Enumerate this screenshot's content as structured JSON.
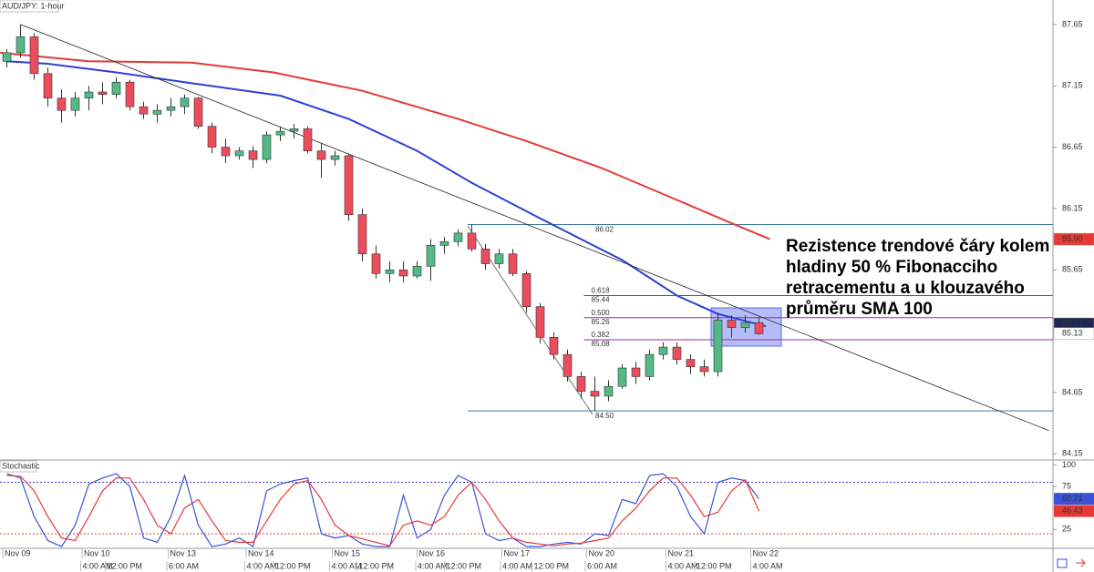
{
  "chart_data": [
    {
      "type": "candlestick",
      "title": "AUD/JPY: 1-hour",
      "xlim": [
        -0.5,
        76.5
      ],
      "ylim": [
        84.1,
        87.85
      ],
      "yticks": [
        84.15,
        84.65,
        85.65,
        86.15,
        86.65,
        87.15,
        87.65
      ],
      "up_color": "#53b987",
      "down_color": "#eb4d5c",
      "candles": [
        [
          87.35,
          87.45,
          87.3,
          87.42
        ],
        [
          87.42,
          87.65,
          87.38,
          87.55
        ],
        [
          87.55,
          87.58,
          87.2,
          87.25
        ],
        [
          87.25,
          87.3,
          86.98,
          87.05
        ],
        [
          87.05,
          87.12,
          86.85,
          86.95
        ],
        [
          86.95,
          87.1,
          86.9,
          87.05
        ],
        [
          87.05,
          87.15,
          86.95,
          87.1
        ],
        [
          87.1,
          87.18,
          87.0,
          87.08
        ],
        [
          87.08,
          87.22,
          87.05,
          87.18
        ],
        [
          87.18,
          87.2,
          86.95,
          86.98
        ],
        [
          86.98,
          87.02,
          86.88,
          86.92
        ],
        [
          86.92,
          87.0,
          86.85,
          86.95
        ],
        [
          86.95,
          87.05,
          86.9,
          86.98
        ],
        [
          86.98,
          87.08,
          86.92,
          87.05
        ],
        [
          87.05,
          87.06,
          86.8,
          86.82
        ],
        [
          86.82,
          86.85,
          86.6,
          86.65
        ],
        [
          86.65,
          86.72,
          86.52,
          86.58
        ],
        [
          86.58,
          86.65,
          86.55,
          86.62
        ],
        [
          86.62,
          86.66,
          86.48,
          86.55
        ],
        [
          86.55,
          86.78,
          86.52,
          86.75
        ],
        [
          86.75,
          86.82,
          86.7,
          86.78
        ],
        [
          86.78,
          86.84,
          86.72,
          86.8
        ],
        [
          86.8,
          86.82,
          86.6,
          86.62
        ],
        [
          86.62,
          86.68,
          86.4,
          86.55
        ],
        [
          86.55,
          86.62,
          86.5,
          86.58
        ],
        [
          86.58,
          86.6,
          86.05,
          86.1
        ],
        [
          86.1,
          86.15,
          85.72,
          85.78
        ],
        [
          85.78,
          85.85,
          85.58,
          85.62
        ],
        [
          85.62,
          85.72,
          85.55,
          85.65
        ],
        [
          85.65,
          85.72,
          85.55,
          85.6
        ],
        [
          85.6,
          85.72,
          85.58,
          85.68
        ],
        [
          85.68,
          85.9,
          85.56,
          85.85
        ],
        [
          85.85,
          85.92,
          85.78,
          85.88
        ],
        [
          85.88,
          85.98,
          85.84,
          85.95
        ],
        [
          85.95,
          86.02,
          85.8,
          85.82
        ],
        [
          85.82,
          85.86,
          85.65,
          85.7
        ],
        [
          85.7,
          85.82,
          85.66,
          85.78
        ],
        [
          85.78,
          85.82,
          85.6,
          85.62
        ],
        [
          85.62,
          85.64,
          85.3,
          85.35
        ],
        [
          85.35,
          85.38,
          85.05,
          85.1
        ],
        [
          85.1,
          85.14,
          84.92,
          84.96
        ],
        [
          84.96,
          85.0,
          84.74,
          84.78
        ],
        [
          84.78,
          84.82,
          84.6,
          84.66
        ],
        [
          84.66,
          84.78,
          84.5,
          84.62
        ],
        [
          84.62,
          84.75,
          84.58,
          84.7
        ],
        [
          84.7,
          84.88,
          84.68,
          84.85
        ],
        [
          84.85,
          84.9,
          84.72,
          84.78
        ],
        [
          84.78,
          85.0,
          84.75,
          84.96
        ],
        [
          84.96,
          85.06,
          84.92,
          85.02
        ],
        [
          85.02,
          85.06,
          84.88,
          84.92
        ],
        [
          84.92,
          84.96,
          84.8,
          84.86
        ],
        [
          84.86,
          84.92,
          84.78,
          84.82
        ],
        [
          84.82,
          85.3,
          84.78,
          85.24
        ],
        [
          85.24,
          85.28,
          85.1,
          85.18
        ],
        [
          85.18,
          85.28,
          85.14,
          85.22
        ],
        [
          85.22,
          85.26,
          85.12,
          85.13
        ]
      ],
      "series": [
        {
          "color": "#2f3fd6",
          "x": [
            0,
            3,
            8,
            13,
            20,
            25,
            30,
            34,
            39,
            45,
            49,
            52,
            55.5
          ],
          "values": [
            87.35,
            87.33,
            87.26,
            87.18,
            87.07,
            86.88,
            86.62,
            86.36,
            86.07,
            85.73,
            85.44,
            85.29,
            85.19
          ]
        },
        {
          "color": "#e53935",
          "x": [
            -0.5,
            6,
            13.5,
            19.5,
            26,
            33,
            38,
            43.5,
            49,
            53,
            55.8
          ],
          "values": [
            87.42,
            87.35,
            87.34,
            87.26,
            87.11,
            86.88,
            86.7,
            86.48,
            86.22,
            86.03,
            85.9
          ]
        }
      ],
      "trendline": {
        "color": "#222222",
        "x": [
          1,
          76.2
        ],
        "values": [
          87.65,
          84.34
        ]
      },
      "fib_levels": [
        {
          "value": 86.02,
          "label": "86.02",
          "x_start": 33.7,
          "color": "#3c78a0"
        },
        {
          "value": 85.44,
          "label": "85.44",
          "ratio": "0.618",
          "x_start": 42.2,
          "color": "#9c27b0"
        },
        {
          "value": 85.26,
          "label": "85.26",
          "ratio": "0.500",
          "x_start": 42.2,
          "color": "#9c27b0"
        },
        {
          "value": 85.08,
          "label": "85.08",
          "ratio": "0.382",
          "x_start": 42.2,
          "color": "#9c27b0"
        },
        {
          "value": 84.5,
          "label": "84.50",
          "x_start": 33.7,
          "color": "#3c78a0"
        }
      ],
      "price_tags": [
        {
          "value": 85.9,
          "label": "85.90",
          "color": "#e53935",
          "text_color": "#ffffff"
        },
        {
          "value": 85.21,
          "label": "85.21",
          "color": "#1c2754",
          "text_color": "#ffffff"
        },
        {
          "value": 85.13,
          "label": "85.13",
          "color": "#ffffff",
          "text_color": "#000000"
        }
      ],
      "annotation": [
        "Rezistence trendové čáry kolem",
        "hladiny 50 % Fibonacciho",
        "retracementu a u klouzavého",
        "průměru SMA 100"
      ]
    },
    {
      "type": "line",
      "title": "Stochastic",
      "xlim": [
        -0.5,
        76.5
      ],
      "ylim": [
        3,
        106
      ],
      "yticks": [
        25,
        75,
        100
      ],
      "bands": [
        {
          "value": 80,
          "color": "#3a3ad0"
        },
        {
          "value": 20,
          "color": "#e53935"
        }
      ],
      "series": [
        {
          "color": "#3a52d8",
          "values": [
            90,
            85,
            40,
            12,
            5,
            30,
            78,
            85,
            90,
            75,
            15,
            10,
            40,
            88,
            30,
            5,
            8,
            15,
            5,
            70,
            78,
            82,
            85,
            20,
            15,
            18,
            8,
            5,
            5,
            65,
            15,
            25,
            65,
            88,
            80,
            20,
            12,
            15,
            5,
            5,
            8,
            10,
            8,
            20,
            18,
            60,
            55,
            88,
            90,
            75,
            40,
            20,
            80,
            85,
            82,
            60.71
          ]
        },
        {
          "color": "#e53935",
          "values": [
            88,
            87,
            70,
            40,
            15,
            12,
            40,
            70,
            85,
            85,
            60,
            30,
            20,
            50,
            60,
            35,
            12,
            10,
            10,
            35,
            60,
            78,
            82,
            60,
            30,
            18,
            14,
            10,
            6,
            30,
            35,
            30,
            40,
            65,
            80,
            60,
            35,
            15,
            10,
            8,
            6,
            8,
            9,
            12,
            15,
            35,
            50,
            70,
            85,
            85,
            65,
            40,
            45,
            70,
            83,
            46.43
          ]
        }
      ],
      "xticks": [
        {
          "value": -0.3,
          "label": "Nov 09"
        },
        {
          "value": 5.5,
          "label": "Nov 10"
        },
        {
          "value": 11.8,
          "label": "Nov 13"
        },
        {
          "value": 17.5,
          "label": "Nov 14"
        },
        {
          "value": 23.8,
          "label": "Nov 15"
        },
        {
          "value": 30,
          "label": "Nov 16"
        },
        {
          "value": 36.2,
          "label": "Nov 17"
        },
        {
          "value": 42.4,
          "label": "Nov 20"
        },
        {
          "value": 48.2,
          "label": "Nov 21"
        },
        {
          "value": 54.4,
          "label": "Nov 22"
        }
      ],
      "xticks_time": [
        {
          "value": 5.4,
          "label": "4:00 AM"
        },
        {
          "value": 7.2,
          "label": "12:00 PM"
        },
        {
          "value": 11.7,
          "label": "6:00 AM"
        },
        {
          "value": 17.4,
          "label": "4:00 AM"
        },
        {
          "value": 19.5,
          "label": "12:00 PM"
        },
        {
          "value": 23.6,
          "label": "4:00 AM"
        },
        {
          "value": 25.6,
          "label": "12:00 PM"
        },
        {
          "value": 29.9,
          "label": "4:00 AM"
        },
        {
          "value": 32,
          "label": "12:00 PM"
        },
        {
          "value": 36.1,
          "label": "4:00 AM"
        },
        {
          "value": 38.4,
          "label": "12:00 PM"
        },
        {
          "value": 42.3,
          "label": "6:00 AM"
        },
        {
          "value": 48.2,
          "label": "4:00 AM"
        },
        {
          "value": 50.3,
          "label": "12:00 PM"
        },
        {
          "value": 54.4,
          "label": "4:00 AM"
        }
      ]
    }
  ]
}
